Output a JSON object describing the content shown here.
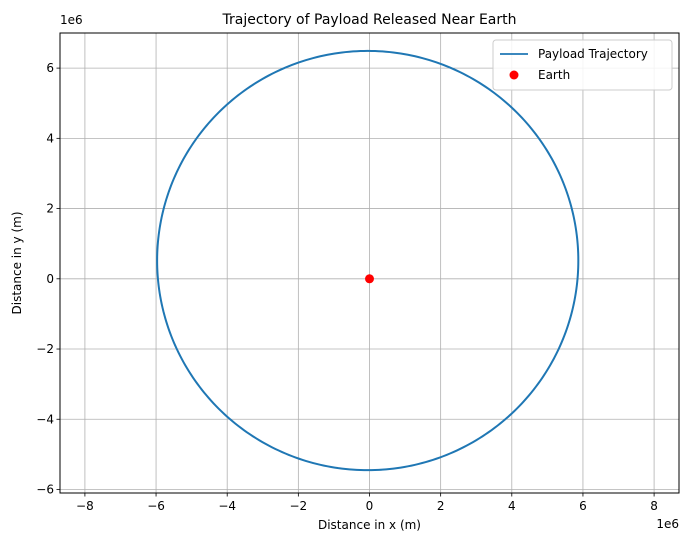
{
  "chart_data": {
    "type": "line",
    "title": "Trajectory of Payload Released Near Earth",
    "xlabel": "Distance in x (m)",
    "ylabel": "Distance in y (m)",
    "x_multiplier_label": "1e6",
    "y_multiplier_label": "1e6",
    "xlim": [
      -8.7,
      8.7
    ],
    "ylim": [
      -6.1,
      7.0
    ],
    "xticks": [
      -8,
      -6,
      -4,
      -2,
      0,
      2,
      4,
      6,
      8
    ],
    "yticks": [
      -6,
      -4,
      -2,
      0,
      2,
      4,
      6
    ],
    "tick_label_scale": 1000000,
    "grid": true,
    "legend_position": "top-right",
    "series": [
      {
        "name": "Payload Trajectory",
        "kind": "line",
        "color": "#1f77b4",
        "shape": "ellipse",
        "center": [
          -0.05,
          0.52
        ],
        "semi_axis_x": 5.92,
        "semi_axis_y": 5.97,
        "units": "1e6 m"
      },
      {
        "name": "Earth",
        "kind": "scatter",
        "color": "#ff0000",
        "points": [
          [
            0,
            0
          ]
        ]
      }
    ]
  }
}
